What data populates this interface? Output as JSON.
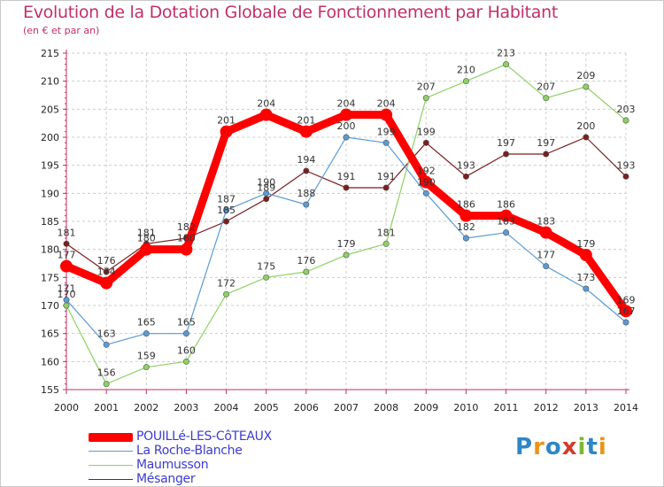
{
  "title": "Evolution de la Dotation Globale de Fonctionnement par Habitant",
  "subtitle": "(en € et par an)",
  "logo": {
    "letters": [
      "P",
      "r",
      "o",
      "x",
      "i",
      "t",
      "i"
    ],
    "colors": [
      "#2e86c8",
      "#e8941a",
      "#2e86c8",
      "#d43a2a",
      "#7bb832",
      "#2e86c8",
      "#e8941a"
    ]
  },
  "chart_data": {
    "type": "line",
    "title": "Evolution de la Dotation Globale de Fonctionnement par Habitant",
    "subtitle": "(en € et par an)",
    "x": [
      "2000",
      "2001",
      "2002",
      "2003",
      "2004",
      "2005",
      "2006",
      "2007",
      "2008",
      "2009",
      "2010",
      "2011",
      "2012",
      "2013",
      "2014"
    ],
    "ylim": [
      155,
      215
    ],
    "yticks": [
      "155",
      "160",
      "165",
      "170",
      "175",
      "180",
      "185",
      "190",
      "195",
      "200",
      "205",
      "210",
      "215"
    ],
    "grid": true,
    "legend_position": "bottom-left",
    "series": [
      {
        "name": "Mésanger",
        "color": "#7a1f1f",
        "values": [
          181,
          176,
          181,
          182,
          185,
          189,
          194,
          191,
          191,
          199,
          193,
          197,
          197,
          200,
          193
        ]
      },
      {
        "name": "Maumusson",
        "color": "#8ed163",
        "values": [
          170,
          156,
          159,
          160,
          172,
          175,
          176,
          179,
          181,
          207,
          210,
          213,
          207,
          209,
          203
        ]
      },
      {
        "name": "La Roche-Blanche",
        "color": "#5b9bd5",
        "values": [
          171,
          163,
          165,
          165,
          187,
          190,
          188,
          200,
          199,
          190,
          182,
          183,
          177,
          173,
          167
        ]
      },
      {
        "name": "POUILLé-LES-CôTEAUX",
        "color": "#ff0000",
        "values": [
          177,
          174,
          180,
          180,
          201,
          204,
          201,
          204,
          204,
          192,
          186,
          186,
          183,
          179,
          169
        ]
      }
    ],
    "legend": [
      "POUILLé-LES-CôTEAUX",
      "La Roche-Blanche",
      "Maumusson",
      "Mésanger"
    ]
  }
}
